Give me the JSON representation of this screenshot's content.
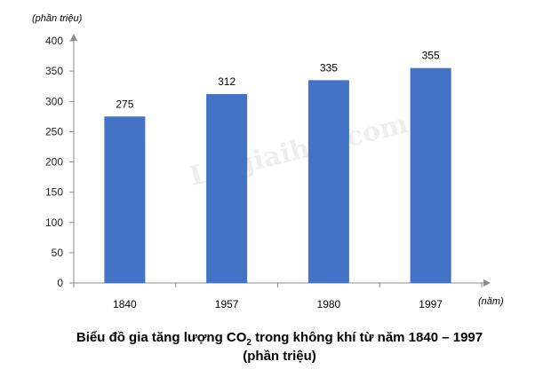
{
  "chart_data": {
    "type": "bar",
    "categories": [
      "1840",
      "1957",
      "1980",
      "1997"
    ],
    "values": [
      275,
      312,
      335,
      355
    ],
    "ylabel": "(phần triệu)",
    "xlabel": "(năm)",
    "ylim": [
      0,
      400
    ],
    "yticks": [
      0,
      50,
      100,
      150,
      200,
      250,
      300,
      350,
      400
    ],
    "bar_color": "#4472c4",
    "grid": false,
    "legend": "none",
    "title_line1_prefix": "Biểu đồ gia tăng lượng CO",
    "title_line1_sub": "2",
    "title_line1_suffix": " trong không khí từ năm 1840 – 1997",
    "title_line2": "(phần triệu)"
  },
  "watermark": "Loigiaihay.com"
}
